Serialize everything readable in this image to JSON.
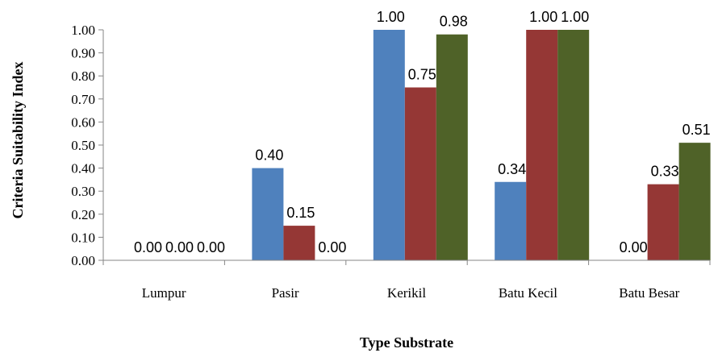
{
  "chart_data": {
    "type": "bar",
    "title": "",
    "xlabel": "Type Substrate",
    "ylabel": "Criteria Suitability Index",
    "categories": [
      "Lumpur",
      "Pasir",
      "Kerikil",
      "Batu Kecil",
      "Batu Besar"
    ],
    "series": [
      {
        "color": "#4f81bd",
        "values": [
          0.0,
          0.4,
          1.0,
          0.34,
          0.0
        ],
        "labels": [
          "0.00",
          "0.40",
          "1.00",
          "0.34",
          "0.00"
        ]
      },
      {
        "color": "#953735",
        "values": [
          0.0,
          0.15,
          0.75,
          1.0,
          0.33
        ],
        "labels": [
          "0.00",
          "0.15",
          "0.75",
          "1.00",
          "0.33"
        ]
      },
      {
        "color": "#4f6228",
        "values": [
          0.0,
          0.0,
          0.98,
          1.0,
          0.51
        ],
        "labels": [
          "0.00",
          "0.00",
          "0.98",
          "1.00",
          "0.51"
        ]
      }
    ],
    "ylim": [
      0,
      1.0
    ],
    "yticks": [
      "0.00",
      "0.10",
      "0.20",
      "0.30",
      "0.40",
      "0.50",
      "0.60",
      "0.70",
      "0.80",
      "0.90",
      "1.00"
    ],
    "grid": false,
    "legend": "none"
  }
}
